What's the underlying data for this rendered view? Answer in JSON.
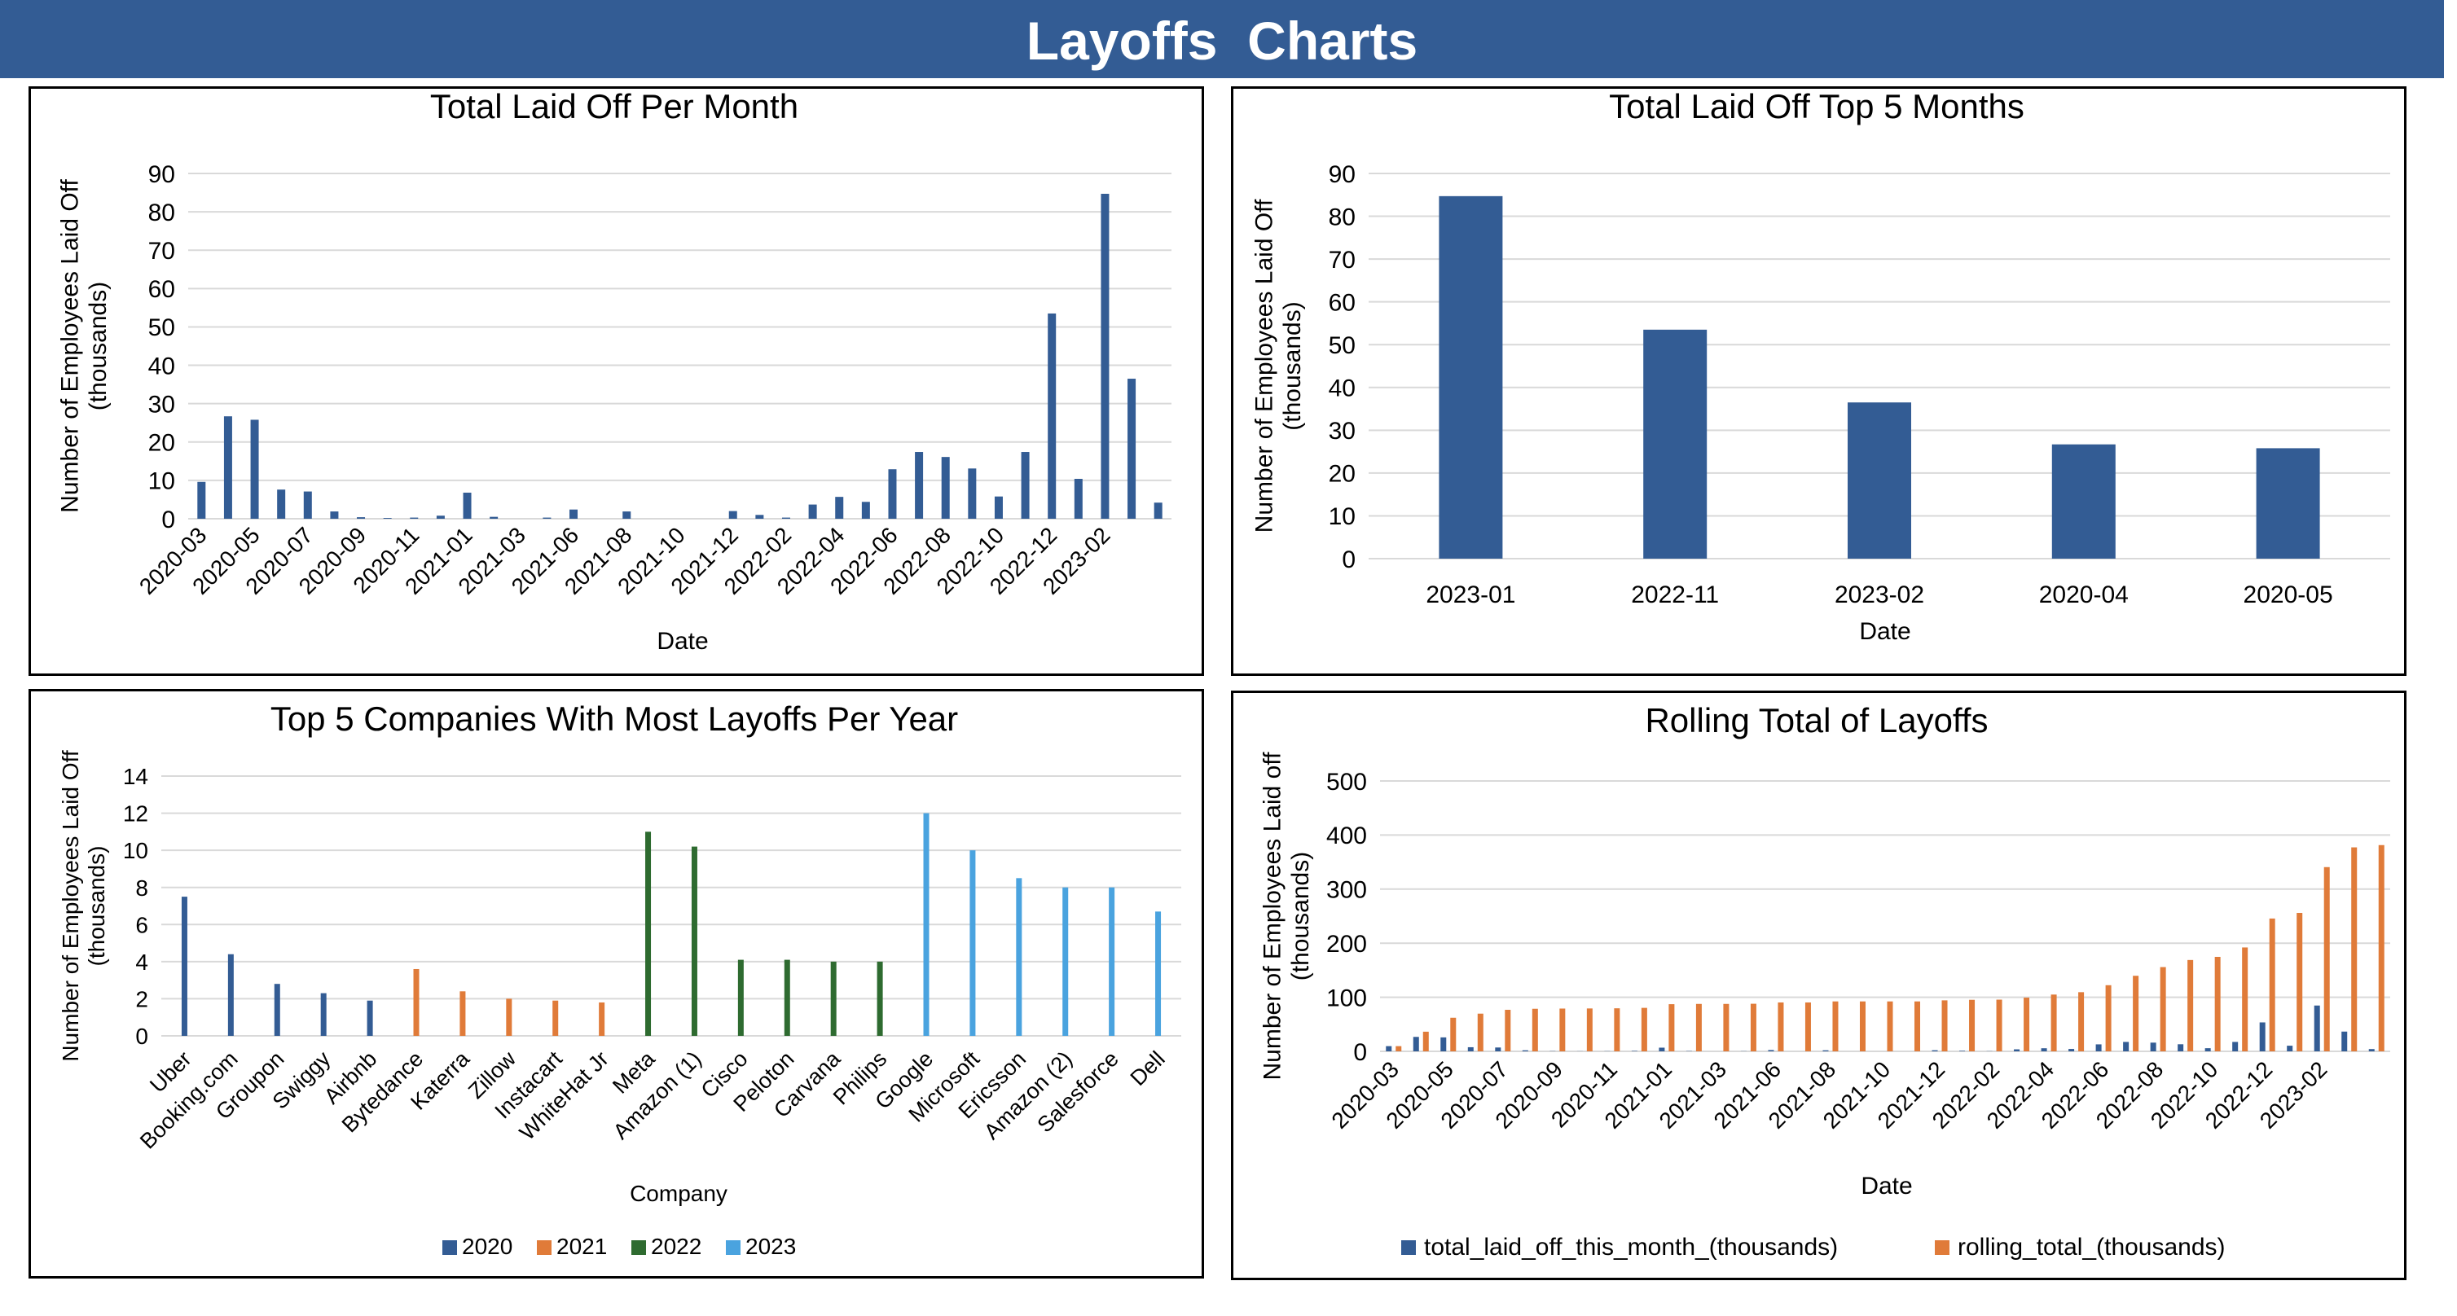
{
  "header": {
    "title": "Layoffs  Charts"
  },
  "colors": {
    "header_bg": "#335c94",
    "bar_blue": "#335c94",
    "orange": "#e07b39",
    "green": "#2e6b30",
    "light_blue": "#4aa3df",
    "grid": "#d9d9d9",
    "text": "#000000"
  },
  "chart_data": [
    {
      "type": "bar",
      "title": "Total Laid Off Per Month",
      "xlabel": "Date",
      "ylabel": "Number of Employees Laid Off (thousands)",
      "ylim": [
        0,
        90
      ],
      "yticks": [
        0,
        10,
        20,
        30,
        40,
        50,
        60,
        70,
        80,
        90
      ],
      "grid": true,
      "tick_labels": [
        "2020-03",
        "2020-05",
        "2020-07",
        "2020-09",
        "2020-11",
        "2021-01",
        "2021-03",
        "2021-06",
        "2021-08",
        "2021-10",
        "2021-12",
        "2022-02",
        "2022-04",
        "2022-06",
        "2022-08",
        "2022-10",
        "2022-12",
        "2023-02"
      ],
      "values": [
        9.6,
        26.7,
        25.8,
        7.6,
        7.1,
        1.9,
        0.4,
        0.2,
        0.3,
        0.8,
        6.8,
        0.5,
        0,
        0.3,
        2.4,
        0,
        1.9,
        0,
        0,
        0,
        2.0,
        1.0,
        0.3,
        3.7,
        5.7,
        4.4,
        12.9,
        17.4,
        16.1,
        13.1,
        5.8,
        17.4,
        53.5,
        10.4,
        84.7,
        36.5,
        4.2
      ]
    },
    {
      "type": "bar",
      "title": "Total Laid Off Top 5 Months",
      "xlabel": "Date",
      "ylabel": "Number of Employees Laid Off (thousands)",
      "ylim": [
        0,
        90
      ],
      "yticks": [
        0,
        10,
        20,
        30,
        40,
        50,
        60,
        70,
        80,
        90
      ],
      "grid": true,
      "categories": [
        "2023-01",
        "2022-11",
        "2023-02",
        "2020-04",
        "2020-05"
      ],
      "values": [
        84.7,
        53.5,
        36.5,
        26.7,
        25.8
      ]
    },
    {
      "type": "bar",
      "title": "Top 5 Companies With Most Layoffs Per Year",
      "xlabel": "Company",
      "ylabel": "Number of Employees Laid Off (thousands)",
      "ylim": [
        0,
        14
      ],
      "yticks": [
        0,
        2,
        4,
        6,
        8,
        10,
        12,
        14
      ],
      "grid": true,
      "legend_position": "bottom",
      "series": [
        {
          "name": "2020",
          "color": "#335c94",
          "categories": [
            "Uber",
            "Booking.com",
            "Groupon",
            "Swiggy",
            "Airbnb"
          ],
          "values": [
            7.5,
            4.4,
            2.8,
            2.3,
            1.9
          ]
        },
        {
          "name": "2021",
          "color": "#e07b39",
          "categories": [
            "Bytedance",
            "Katerra",
            "Zillow",
            "Instacart",
            "WhiteHat Jr"
          ],
          "values": [
            3.6,
            2.4,
            2.0,
            1.9,
            1.8
          ]
        },
        {
          "name": "2022",
          "color": "#2e6b30",
          "categories": [
            "Meta",
            "Amazon (1)",
            "Cisco",
            "Peloton",
            "Carvana",
            "Philips"
          ],
          "values": [
            11.0,
            10.2,
            4.1,
            4.1,
            4.0,
            4.0
          ]
        },
        {
          "name": "2023",
          "color": "#4aa3df",
          "categories": [
            "Google",
            "Microsoft",
            "Ericsson",
            "Amazon (2)",
            "Salesforce",
            "Dell"
          ],
          "values": [
            12.0,
            10.0,
            8.5,
            8.0,
            8.0,
            6.7
          ]
        }
      ]
    },
    {
      "type": "bar",
      "title": "Rolling Total of Layoffs",
      "xlabel": "Date",
      "ylabel": "Number of Employees Laid off (thousands)",
      "ylim": [
        0,
        500
      ],
      "yticks": [
        0,
        100,
        200,
        300,
        400,
        500
      ],
      "grid": true,
      "legend_position": "bottom",
      "tick_labels": [
        "2020-03",
        "2020-05",
        "2020-07",
        "2020-09",
        "2020-11",
        "2021-01",
        "2021-03",
        "2021-06",
        "2021-08",
        "2021-10",
        "2021-12",
        "2022-02",
        "2022-04",
        "2022-06",
        "2022-08",
        "2022-10",
        "2022-12",
        "2023-02"
      ],
      "series": [
        {
          "name": "total_laid_off_this_month_(thousands)",
          "color": "#335c94",
          "values": [
            9.6,
            26.7,
            25.8,
            7.6,
            7.1,
            1.9,
            0.4,
            0.2,
            0.3,
            0.8,
            6.8,
            0.5,
            0,
            0.3,
            2.4,
            0,
            1.9,
            0,
            0,
            0,
            2.0,
            1.0,
            0.3,
            3.7,
            5.7,
            4.4,
            12.9,
            17.4,
            16.1,
            13.1,
            5.8,
            17.4,
            53.5,
            10.4,
            84.7,
            36.5,
            4.2
          ]
        },
        {
          "name": "rolling_total_(thousands)",
          "color": "#e07b39",
          "values": [
            9.6,
            36.3,
            62.1,
            69.7,
            76.8,
            78.7,
            79.1,
            79.3,
            79.6,
            80.4,
            87.2,
            87.7,
            87.7,
            88.0,
            90.4,
            90.4,
            92.3,
            92.3,
            92.3,
            92.3,
            94.3,
            95.3,
            95.6,
            99.3,
            105.0,
            109.4,
            122.3,
            139.7,
            155.8,
            168.9,
            174.7,
            192.1,
            245.6,
            256.0,
            340.7,
            377.2,
            381.4
          ]
        }
      ]
    }
  ]
}
